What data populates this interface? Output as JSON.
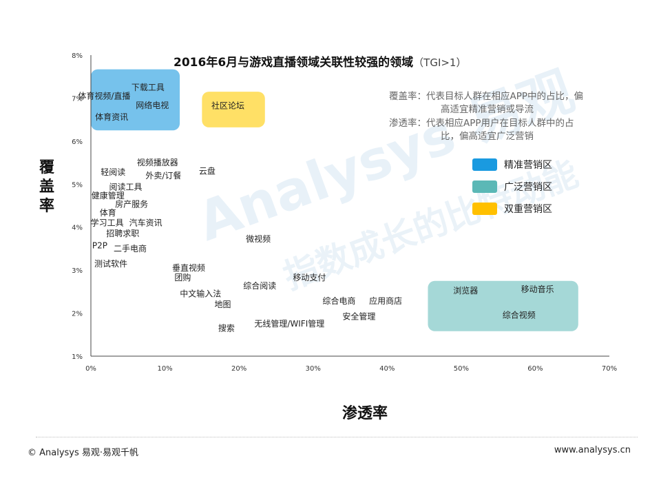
{
  "chart_data": {
    "type": "scatter",
    "title": "2016年6月与游戏直播领域关联性较强的领域",
    "title_suffix": "（TGI>1）",
    "xlabel": "渗透率",
    "ylabel": "覆盖率",
    "xlim": [
      0,
      70
    ],
    "ylim": [
      1,
      8
    ],
    "x_ticks": [
      "0%",
      "10%",
      "20%",
      "30%",
      "40%",
      "50%",
      "60%",
      "70%"
    ],
    "y_ticks": [
      "1%",
      "2%",
      "3%",
      "4%",
      "5%",
      "6%",
      "7%",
      "8%"
    ],
    "grid": false,
    "points": [
      {
        "label": "下载工具",
        "x": 7.7,
        "y": 7.25
      },
      {
        "label": "体育视频/直播",
        "x": 1.8,
        "y": 7.05
      },
      {
        "label": "网络电视",
        "x": 8.3,
        "y": 6.83
      },
      {
        "label": "体育资讯",
        "x": 2.8,
        "y": 6.56
      },
      {
        "label": "社区论坛",
        "x": 18.5,
        "y": 6.82
      },
      {
        "label": "视频播放器",
        "x": 9.0,
        "y": 5.5
      },
      {
        "label": "轻阅读",
        "x": 3.0,
        "y": 5.28
      },
      {
        "label": "外卖/订餐",
        "x": 9.8,
        "y": 5.2
      },
      {
        "label": "云盘",
        "x": 15.7,
        "y": 5.3
      },
      {
        "label": "阅读工具",
        "x": 4.7,
        "y": 4.93
      },
      {
        "label": "健康管理",
        "x": 2.3,
        "y": 4.73
      },
      {
        "label": "房产服务",
        "x": 5.5,
        "y": 4.53
      },
      {
        "label": "体育",
        "x": 2.3,
        "y": 4.33
      },
      {
        "label": "学习工具",
        "x": 2.2,
        "y": 4.1
      },
      {
        "label": "汽车资讯",
        "x": 7.4,
        "y": 4.1
      },
      {
        "label": "招聘求职",
        "x": 4.3,
        "y": 3.85
      },
      {
        "label": "微视频",
        "x": 22.6,
        "y": 3.72
      },
      {
        "label": "P2P",
        "x": 1.2,
        "y": 3.57
      },
      {
        "label": "二手电商",
        "x": 5.3,
        "y": 3.5
      },
      {
        "label": "测试软件",
        "x": 2.7,
        "y": 3.15
      },
      {
        "label": "垂直视频",
        "x": 13.2,
        "y": 3.05
      },
      {
        "label": "团购",
        "x": 12.4,
        "y": 2.83
      },
      {
        "label": "移动支付",
        "x": 29.5,
        "y": 2.83
      },
      {
        "label": "综合阅读",
        "x": 22.8,
        "y": 2.63
      },
      {
        "label": "中文输入法",
        "x": 14.8,
        "y": 2.45
      },
      {
        "label": "综合电商",
        "x": 33.5,
        "y": 2.28
      },
      {
        "label": "应用商店",
        "x": 39.8,
        "y": 2.28
      },
      {
        "label": "地图",
        "x": 17.8,
        "y": 2.2
      },
      {
        "label": "安全管理",
        "x": 36.2,
        "y": 1.92
      },
      {
        "label": "无线管理/WIFI管理",
        "x": 26.8,
        "y": 1.75
      },
      {
        "label": "搜索",
        "x": 18.3,
        "y": 1.65
      },
      {
        "label": "浏览器",
        "x": 50.6,
        "y": 2.52
      },
      {
        "label": "移动音乐",
        "x": 60.3,
        "y": 2.55
      },
      {
        "label": "综合视频",
        "x": 57.8,
        "y": 1.95
      }
    ],
    "regions": [
      {
        "name": "精准营销区",
        "color": "#1a9ae0",
        "opacity": 0.6,
        "x": [
          0,
          12
        ],
        "y": [
          6.25,
          7.67
        ]
      },
      {
        "name": "双重营销区",
        "color": "#ffcc00",
        "opacity": 0.6,
        "x": [
          15,
          23.5
        ],
        "y": [
          6.32,
          7.15
        ]
      },
      {
        "name": "广泛营销区",
        "color": "#5bb8b6",
        "opacity": 0.55,
        "x": [
          45.5,
          65.8
        ],
        "y": [
          1.58,
          2.75
        ]
      }
    ],
    "notes": [
      "覆盖率：代表目标人群在相应APP中的占比，偏",
      "高适宜精准营销或导流",
      "渗透率：代表相应APP用户在目标人群中的占",
      "比，偏高适宜广泛营销"
    ],
    "legend": [
      {
        "name": "精准营销区",
        "color": "#1a9ae0"
      },
      {
        "name": "广泛营销区",
        "color": "#5bb8b6"
      },
      {
        "name": "双重营销区",
        "color": "#ffc000"
      }
    ],
    "legend_position": "right",
    "watermark_lines": [
      "Analysys 易观",
      "指数成长的比特动能"
    ]
  },
  "footer": {
    "copyright": "© Analysys 易观·易观千帆",
    "website": "www.analysys.cn"
  }
}
